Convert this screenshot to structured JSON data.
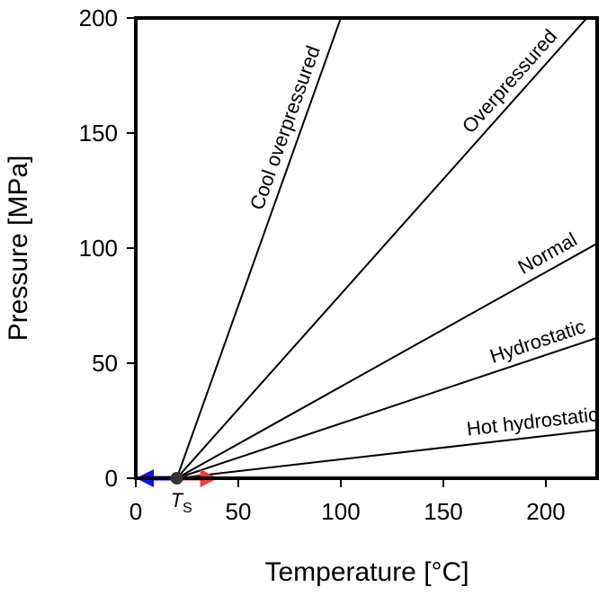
{
  "chart_data": {
    "type": "line",
    "x_label": "Temperature [°C]",
    "y_label": "Pressure [MPa]",
    "xlim": [
      0,
      225
    ],
    "ylim": [
      0,
      200
    ],
    "xticks": [
      0,
      50,
      100,
      150,
      200
    ],
    "yticks": [
      0,
      50,
      100,
      150,
      200
    ],
    "series": [
      {
        "name": "Cool overpressured",
        "color": "#000000",
        "x": [
          20,
          100
        ],
        "values": [
          0,
          200
        ]
      },
      {
        "name": "Overpressured",
        "color": "#000000",
        "x": [
          20,
          220
        ],
        "values": [
          0,
          200
        ]
      },
      {
        "name": "Normal",
        "color": "#000000",
        "x": [
          20,
          225
        ],
        "values": [
          0,
          102
        ]
      },
      {
        "name": "Hydrostatic",
        "color": "#000000",
        "x": [
          20,
          225
        ],
        "values": [
          0,
          61
        ]
      },
      {
        "name": "Hot hydrostatic",
        "color": "#000000",
        "x": [
          20,
          225
        ],
        "values": [
          0,
          21
        ]
      }
    ],
    "point": {
      "x": 20,
      "y": 0,
      "label": "T",
      "subscript": "S",
      "color": "#333333"
    }
  }
}
